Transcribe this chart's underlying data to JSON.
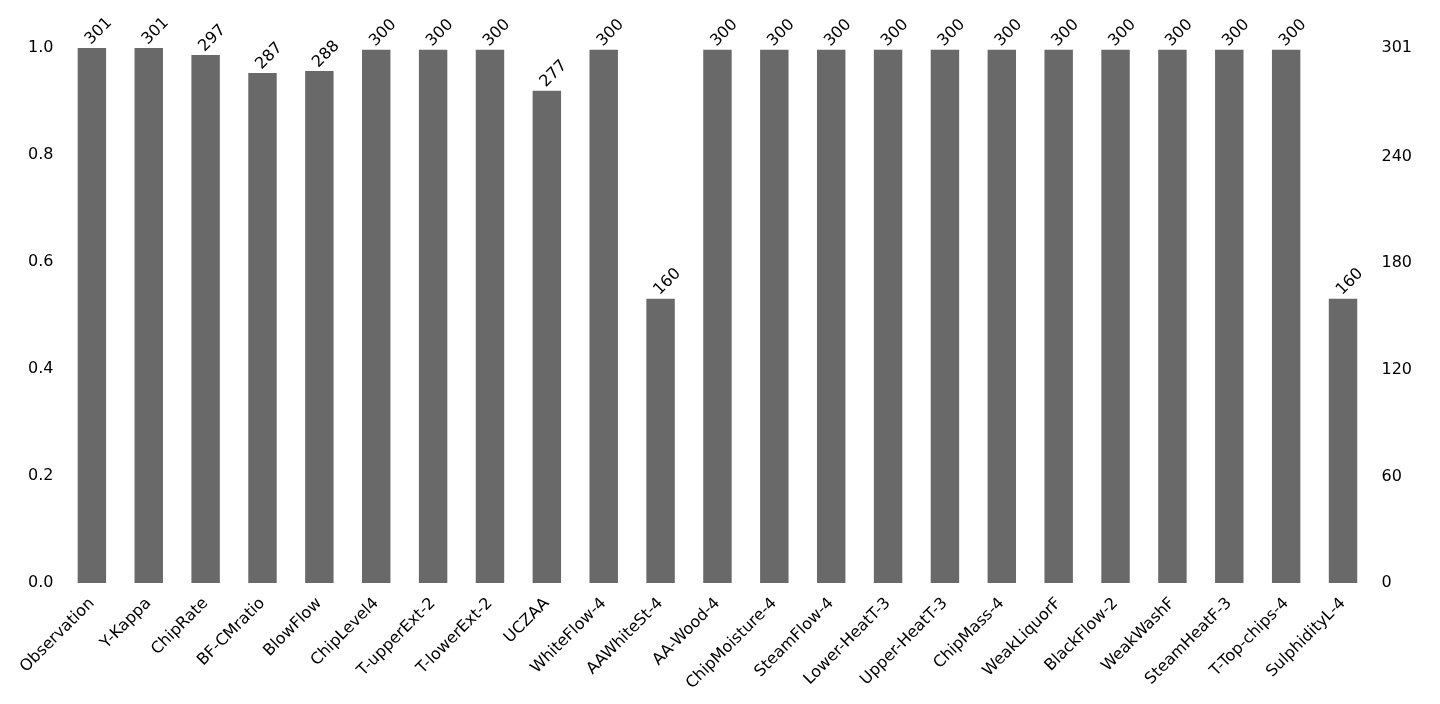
{
  "chart_data": {
    "type": "bar",
    "categories": [
      "Observation",
      "Y-Kappa",
      "ChipRate",
      "BF-CMratio",
      "BlowFlow",
      "ChipLevel4",
      "T-upperExt-2",
      "T-lowerExt-2",
      "UCZAA",
      "WhiteFlow-4",
      "AAWhiteSt-4",
      "AA-Wood-4",
      "ChipMoisture-4",
      "SteamFlow-4",
      "Lower-HeatT-3",
      "Upper-HeatT-3",
      "ChipMass-4",
      "WeakLiquorF",
      "BlackFlow-2",
      "WeakWashF",
      "SteamHeatF-3",
      "T-Top-chips-4",
      "SulphidityL-4"
    ],
    "series": [
      {
        "axis": "y2",
        "color": "#696969",
        "values": [
          301,
          301,
          297,
          287,
          288,
          300,
          300,
          300,
          277,
          300,
          160,
          300,
          300,
          300,
          300,
          300,
          300,
          300,
          300,
          300,
          300,
          300,
          160
        ]
      }
    ],
    "ylim": [
      0,
      1
    ],
    "yticks": [
      {
        "value": 0,
        "label": "0.0"
      },
      {
        "value": 0.2,
        "label": "0.2"
      },
      {
        "value": 0.4,
        "label": "0.4"
      },
      {
        "value": 0.6,
        "label": "0.6"
      },
      {
        "value": 0.8,
        "label": "0.8"
      },
      {
        "value": 1,
        "label": "1.0"
      }
    ],
    "y2lim": [
      0,
      301
    ],
    "y2ticks": [
      0,
      60,
      120,
      180,
      240,
      301
    ],
    "data_labels": true,
    "grid": false,
    "legend": false
  }
}
